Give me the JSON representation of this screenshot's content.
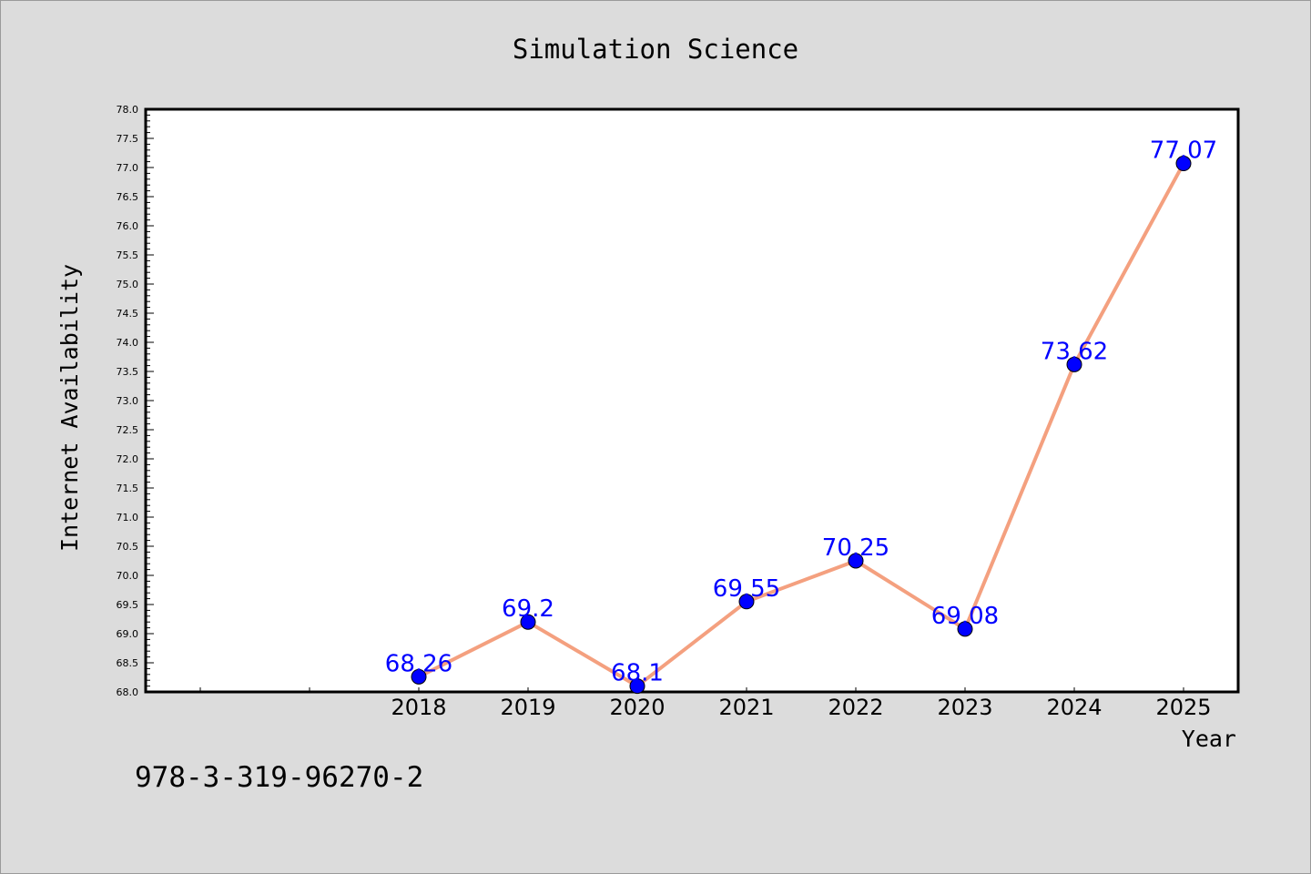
{
  "chart_data": {
    "type": "line",
    "title": "Simulation Science",
    "xlabel": "Year",
    "ylabel": "Internet Availability",
    "x": [
      "2018",
      "2019",
      "2020",
      "2021",
      "2022",
      "2023",
      "2024",
      "2025"
    ],
    "series": [
      {
        "values": [
          68.26,
          69.2,
          68.1,
          69.55,
          70.25,
          69.08,
          73.62,
          77.07
        ],
        "labels": [
          "68.26",
          "69.2",
          "68.1",
          "69.55",
          "70.25",
          "69.08",
          "73.62",
          "77.07"
        ]
      }
    ],
    "ylim": [
      68.0,
      78.0
    ],
    "yticks": [
      "68.0",
      "68.5",
      "69.0",
      "69.5",
      "70.0",
      "70.5",
      "71.0",
      "71.5",
      "72.0",
      "72.5",
      "73.0",
      "73.5",
      "74.0",
      "74.5",
      "75.0",
      "75.5",
      "76.0",
      "76.5",
      "77.0",
      "77.5",
      "78.0"
    ],
    "grid": false,
    "colors": {
      "line": "#f4a07f",
      "marker": "#0000ff",
      "data_label": "#0000ff",
      "background": "#dcdcdc",
      "plot_background": "#ffffff"
    }
  },
  "footer": {
    "isbn": "978-3-319-96270-2"
  }
}
